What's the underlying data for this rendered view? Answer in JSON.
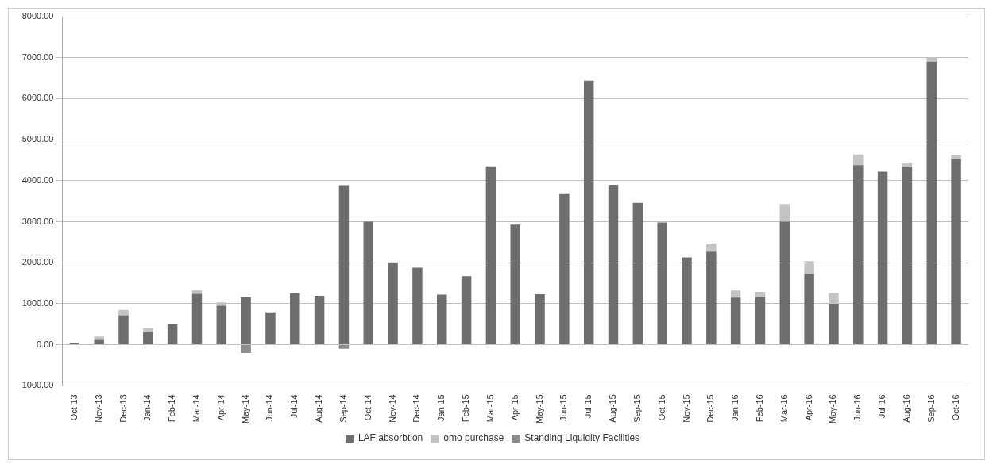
{
  "chart_data": {
    "type": "bar",
    "stacked": true,
    "categories": [
      "Oct-13",
      "Nov-13",
      "Dec-13",
      "Jan-14",
      "Feb-14",
      "Mar-14",
      "Apr-14",
      "May-14",
      "Jun-14",
      "Jul-14",
      "Aug-14",
      "Sep-14",
      "Oct-14",
      "Nov-14",
      "Dec-14",
      "Jan-15",
      "Feb-15",
      "Mar-15",
      "Apr-15",
      "May-15",
      "Jun-15",
      "Jul-15",
      "Aug-15",
      "Sep-15",
      "Oct-15",
      "Nov-15",
      "Dec-15",
      "Jan-16",
      "Feb-16",
      "Mar-16",
      "Apr-16",
      "May-16",
      "Jun-16",
      "Jul-16",
      "Aug-16",
      "Sep-16",
      "Oct-16"
    ],
    "series": [
      {
        "name": "LAF absorbtion",
        "color": "#6e6e6e",
        "values": [
          50,
          120,
          720,
          300,
          500,
          1240,
          950,
          1170,
          790,
          1250,
          1190,
          3890,
          3000,
          2010,
          1880,
          1220,
          1670,
          4350,
          2930,
          1230,
          3690,
          6440,
          3900,
          3460,
          2980,
          2130,
          2270,
          1150,
          1160,
          3000,
          1730,
          1000,
          4380,
          4220,
          4330,
          6900,
          4530
        ]
      },
      {
        "name": "omo purchase",
        "color": "#c4c4c4",
        "values": [
          0,
          80,
          130,
          110,
          0,
          90,
          80,
          0,
          0,
          0,
          0,
          0,
          0,
          0,
          0,
          0,
          0,
          0,
          0,
          0,
          0,
          0,
          0,
          0,
          0,
          0,
          200,
          170,
          130,
          430,
          310,
          260,
          260,
          0,
          110,
          100,
          100
        ]
      },
      {
        "name": "Standing Liquidity Facilities",
        "color": "#8c8c8c",
        "values": [
          0,
          0,
          0,
          0,
          0,
          0,
          0,
          -200,
          0,
          0,
          0,
          -100,
          0,
          0,
          0,
          0,
          0,
          0,
          0,
          0,
          0,
          0,
          0,
          0,
          0,
          0,
          0,
          0,
          0,
          0,
          0,
          0,
          0,
          0,
          0,
          0,
          0
        ]
      }
    ],
    "ylim": [
      -1000,
      8000
    ],
    "yticks": [
      {
        "value": -1000,
        "label": "-1000.00"
      },
      {
        "value": 0,
        "label": "0.00"
      },
      {
        "value": 1000,
        "label": "1000.00"
      },
      {
        "value": 2000,
        "label": "2000.00"
      },
      {
        "value": 3000,
        "label": "3000.00"
      },
      {
        "value": 4000,
        "label": "4000.00"
      },
      {
        "value": 5000,
        "label": "5000.00"
      },
      {
        "value": 6000,
        "label": "6000.00"
      },
      {
        "value": 7000,
        "label": "7000.00"
      },
      {
        "value": 8000,
        "label": "8000.00"
      }
    ],
    "grid": "y",
    "legend": "bottom"
  }
}
